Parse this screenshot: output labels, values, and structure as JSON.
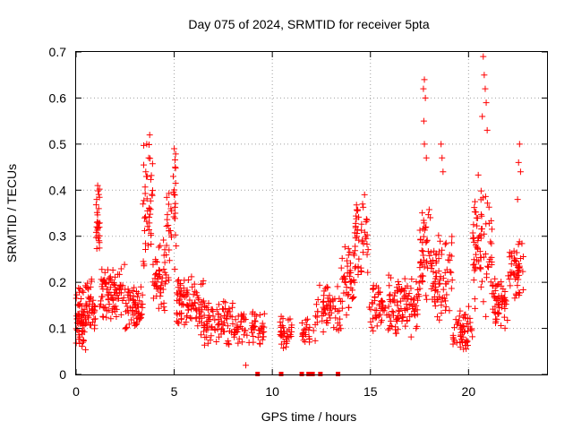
{
  "chart_data": {
    "type": "scatter",
    "title": "Day 075 of 2024, SRMTID for receiver 5pta",
    "xlabel": "GPS time / hours",
    "ylabel": "SRMTID / TECUs",
    "xlim": [
      0,
      24
    ],
    "ylim": [
      0,
      0.7
    ],
    "xticks": [
      0,
      5,
      10,
      15,
      20
    ],
    "yticks": [
      0,
      0.1,
      0.2,
      0.3,
      0.4,
      0.5,
      0.6,
      0.7
    ],
    "grid": true,
    "marker": "plus",
    "color": "#ff0000",
    "clusters": [
      {
        "x_start": 0.0,
        "x_end": 0.5,
        "y_min": 0.05,
        "y_max": 0.2,
        "n": 60
      },
      {
        "x_start": 0.5,
        "x_end": 1.0,
        "y_min": 0.08,
        "y_max": 0.22,
        "n": 40
      },
      {
        "x_start": 1.0,
        "x_end": 1.2,
        "y_min": 0.25,
        "y_max": 0.41,
        "n": 25
      },
      {
        "x_start": 1.2,
        "x_end": 2.5,
        "y_min": 0.1,
        "y_max": 0.25,
        "n": 90
      },
      {
        "x_start": 2.5,
        "x_end": 3.4,
        "y_min": 0.07,
        "y_max": 0.2,
        "n": 60
      },
      {
        "x_start": 3.4,
        "x_end": 3.9,
        "y_min": 0.2,
        "y_max": 0.52,
        "n": 40
      },
      {
        "x_start": 3.9,
        "x_end": 4.6,
        "y_min": 0.12,
        "y_max": 0.3,
        "n": 50
      },
      {
        "x_start": 4.6,
        "x_end": 5.1,
        "y_min": 0.2,
        "y_max": 0.49,
        "n": 35
      },
      {
        "x_start": 5.1,
        "x_end": 6.5,
        "y_min": 0.08,
        "y_max": 0.22,
        "n": 90
      },
      {
        "x_start": 6.5,
        "x_end": 8.0,
        "y_min": 0.05,
        "y_max": 0.18,
        "n": 80
      },
      {
        "x_start": 8.0,
        "x_end": 9.6,
        "y_min": 0.05,
        "y_max": 0.15,
        "n": 70
      },
      {
        "x_start": 10.4,
        "x_end": 11.0,
        "y_min": 0.05,
        "y_max": 0.13,
        "n": 35
      },
      {
        "x_start": 11.5,
        "x_end": 12.2,
        "y_min": 0.06,
        "y_max": 0.13,
        "n": 25
      },
      {
        "x_start": 12.2,
        "x_end": 13.5,
        "y_min": 0.08,
        "y_max": 0.2,
        "n": 60
      },
      {
        "x_start": 13.5,
        "x_end": 14.2,
        "y_min": 0.12,
        "y_max": 0.28,
        "n": 45
      },
      {
        "x_start": 14.2,
        "x_end": 14.9,
        "y_min": 0.2,
        "y_max": 0.39,
        "n": 45
      },
      {
        "x_start": 14.9,
        "x_end": 16.5,
        "y_min": 0.08,
        "y_max": 0.22,
        "n": 90
      },
      {
        "x_start": 16.5,
        "x_end": 17.5,
        "y_min": 0.08,
        "y_max": 0.22,
        "n": 60
      },
      {
        "x_start": 17.5,
        "x_end": 18.1,
        "y_min": 0.15,
        "y_max": 0.42,
        "n": 45
      },
      {
        "x_start": 18.1,
        "x_end": 19.2,
        "y_min": 0.1,
        "y_max": 0.32,
        "n": 70
      },
      {
        "x_start": 19.2,
        "x_end": 20.2,
        "y_min": 0.04,
        "y_max": 0.15,
        "n": 55
      },
      {
        "x_start": 20.2,
        "x_end": 21.2,
        "y_min": 0.12,
        "y_max": 0.45,
        "n": 75
      },
      {
        "x_start": 21.2,
        "x_end": 22.0,
        "y_min": 0.08,
        "y_max": 0.22,
        "n": 55
      },
      {
        "x_start": 22.0,
        "x_end": 22.8,
        "y_min": 0.14,
        "y_max": 0.3,
        "n": 50
      }
    ],
    "peak_points": [
      {
        "x": 1.1,
        "y": 0.41
      },
      {
        "x": 1.05,
        "y": 0.38
      },
      {
        "x": 1.15,
        "y": 0.36
      },
      {
        "x": 3.6,
        "y": 0.5
      },
      {
        "x": 3.75,
        "y": 0.52
      },
      {
        "x": 3.7,
        "y": 0.47
      },
      {
        "x": 3.55,
        "y": 0.44
      },
      {
        "x": 5.0,
        "y": 0.49
      },
      {
        "x": 5.05,
        "y": 0.45
      },
      {
        "x": 4.95,
        "y": 0.43
      },
      {
        "x": 14.7,
        "y": 0.39
      },
      {
        "x": 14.6,
        "y": 0.37
      },
      {
        "x": 17.75,
        "y": 0.64
      },
      {
        "x": 17.7,
        "y": 0.62
      },
      {
        "x": 17.8,
        "y": 0.6
      },
      {
        "x": 17.72,
        "y": 0.55
      },
      {
        "x": 17.75,
        "y": 0.5
      },
      {
        "x": 17.85,
        "y": 0.47
      },
      {
        "x": 18.6,
        "y": 0.5
      },
      {
        "x": 18.65,
        "y": 0.47
      },
      {
        "x": 18.7,
        "y": 0.44
      },
      {
        "x": 20.75,
        "y": 0.69
      },
      {
        "x": 20.8,
        "y": 0.65
      },
      {
        "x": 20.85,
        "y": 0.62
      },
      {
        "x": 20.9,
        "y": 0.59
      },
      {
        "x": 20.7,
        "y": 0.56
      },
      {
        "x": 20.95,
        "y": 0.53
      },
      {
        "x": 22.6,
        "y": 0.5
      },
      {
        "x": 22.55,
        "y": 0.46
      },
      {
        "x": 22.65,
        "y": 0.44
      },
      {
        "x": 22.5,
        "y": 0.38
      },
      {
        "x": 8.65,
        "y": 0.02
      }
    ],
    "zero_points": [
      {
        "x": 9.25,
        "y": 0.0
      },
      {
        "x": 10.45,
        "y": 0.0
      },
      {
        "x": 11.5,
        "y": 0.0
      },
      {
        "x": 11.85,
        "y": 0.0
      },
      {
        "x": 12.05,
        "y": 0.0
      },
      {
        "x": 12.45,
        "y": 0.0
      },
      {
        "x": 13.35,
        "y": 0.0
      }
    ]
  }
}
